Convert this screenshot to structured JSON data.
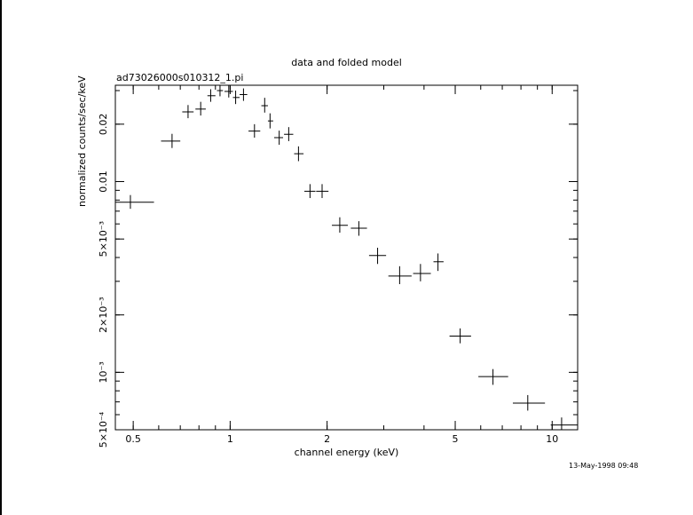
{
  "chart_data": {
    "type": "scatter",
    "title": "data and folded model",
    "subtitle": "ad73026000s010312_1.pi",
    "xlabel": "channel energy (keV)",
    "ylabel": "normalized counts/sec/keV",
    "x_scale": "log",
    "y_scale": "log",
    "xlim": [
      0.44,
      12.0
    ],
    "ylim": [
      0.0005,
      0.032
    ],
    "grid": false,
    "legend": "none",
    "x_ticks": [
      {
        "value": 0.5,
        "label": "0.5"
      },
      {
        "value": 1,
        "label": "1"
      },
      {
        "value": 2,
        "label": "2"
      },
      {
        "value": 5,
        "label": "5"
      },
      {
        "value": 10,
        "label": "10"
      }
    ],
    "y_ticks": [
      {
        "value": 0.0005,
        "label": "5×10⁻⁴"
      },
      {
        "value": 0.001,
        "label": "10⁻³"
      },
      {
        "value": 0.002,
        "label": "2×10⁻³"
      },
      {
        "value": 0.005,
        "label": "5×10⁻³"
      },
      {
        "value": 0.01,
        "label": "0.01"
      },
      {
        "value": 0.02,
        "label": "0.02"
      }
    ],
    "points": [
      {
        "x": 0.49,
        "xlo": 0.44,
        "xhi": 0.58,
        "y": 0.0078,
        "ylo": 0.0072,
        "yhi": 0.0085
      },
      {
        "x": 0.66,
        "xlo": 0.61,
        "xhi": 0.7,
        "y": 0.0163,
        "ylo": 0.015,
        "yhi": 0.0178
      },
      {
        "x": 0.74,
        "xlo": 0.71,
        "xhi": 0.77,
        "y": 0.0232,
        "ylo": 0.0215,
        "yhi": 0.0252
      },
      {
        "x": 0.81,
        "xlo": 0.78,
        "xhi": 0.84,
        "y": 0.024,
        "ylo": 0.0222,
        "yhi": 0.0262
      },
      {
        "x": 0.87,
        "xlo": 0.85,
        "xhi": 0.9,
        "y": 0.0282,
        "ylo": 0.0262,
        "yhi": 0.0305
      },
      {
        "x": 0.93,
        "xlo": 0.91,
        "xhi": 0.95,
        "y": 0.03,
        "ylo": 0.028,
        "yhi": 0.032
      },
      {
        "x": 0.99,
        "xlo": 0.96,
        "xhi": 1.02,
        "y": 0.0297,
        "ylo": 0.0276,
        "yhi": 0.032
      },
      {
        "x": 1.04,
        "xlo": 1.02,
        "xhi": 1.07,
        "y": 0.0276,
        "ylo": 0.0255,
        "yhi": 0.03
      },
      {
        "x": 1.1,
        "xlo": 1.07,
        "xhi": 1.13,
        "y": 0.0286,
        "ylo": 0.0265,
        "yhi": 0.0308
      },
      {
        "x": 1.19,
        "xlo": 1.14,
        "xhi": 1.24,
        "y": 0.0184,
        "ylo": 0.017,
        "yhi": 0.02
      },
      {
        "x": 1.28,
        "xlo": 1.25,
        "xhi": 1.31,
        "y": 0.025,
        "ylo": 0.023,
        "yhi": 0.0275
      },
      {
        "x": 1.33,
        "xlo": 1.31,
        "xhi": 1.36,
        "y": 0.0208,
        "ylo": 0.019,
        "yhi": 0.0228
      },
      {
        "x": 1.42,
        "xlo": 1.37,
        "xhi": 1.46,
        "y": 0.017,
        "ylo": 0.0156,
        "yhi": 0.0185
      },
      {
        "x": 1.52,
        "xlo": 1.47,
        "xhi": 1.57,
        "y": 0.0177,
        "ylo": 0.0163,
        "yhi": 0.0193
      },
      {
        "x": 1.63,
        "xlo": 1.58,
        "xhi": 1.69,
        "y": 0.014,
        "ylo": 0.0128,
        "yhi": 0.0153
      },
      {
        "x": 1.77,
        "xlo": 1.7,
        "xhi": 1.84,
        "y": 0.0089,
        "ylo": 0.0082,
        "yhi": 0.0097
      },
      {
        "x": 1.93,
        "xlo": 1.85,
        "xhi": 2.02,
        "y": 0.0089,
        "ylo": 0.0082,
        "yhi": 0.0097
      },
      {
        "x": 2.19,
        "xlo": 2.07,
        "xhi": 2.32,
        "y": 0.0059,
        "ylo": 0.0054,
        "yhi": 0.0065
      },
      {
        "x": 2.51,
        "xlo": 2.37,
        "xhi": 2.66,
        "y": 0.0057,
        "ylo": 0.0052,
        "yhi": 0.0062
      },
      {
        "x": 2.87,
        "xlo": 2.7,
        "xhi": 3.05,
        "y": 0.0041,
        "ylo": 0.0037,
        "yhi": 0.0045
      },
      {
        "x": 3.36,
        "xlo": 3.1,
        "xhi": 3.66,
        "y": 0.0032,
        "ylo": 0.0029,
        "yhi": 0.0036
      },
      {
        "x": 3.9,
        "xlo": 3.7,
        "xhi": 4.2,
        "y": 0.0033,
        "ylo": 0.003,
        "yhi": 0.0037
      },
      {
        "x": 4.42,
        "xlo": 4.28,
        "xhi": 4.6,
        "y": 0.0038,
        "ylo": 0.0034,
        "yhi": 0.0042
      },
      {
        "x": 5.18,
        "xlo": 4.8,
        "xhi": 5.6,
        "y": 0.00155,
        "ylo": 0.00142,
        "yhi": 0.0017
      },
      {
        "x": 6.55,
        "xlo": 5.9,
        "xhi": 7.3,
        "y": 0.00095,
        "ylo": 0.00086,
        "yhi": 0.00104
      },
      {
        "x": 8.4,
        "xlo": 7.55,
        "xhi": 9.5,
        "y": 0.00069,
        "ylo": 0.00063,
        "yhi": 0.00076
      },
      {
        "x": 10.7,
        "xlo": 9.9,
        "xhi": 12.0,
        "y": 0.00053,
        "ylo": 0.00048,
        "yhi": 0.00058
      }
    ]
  },
  "footer": {
    "timestamp": "13-May-1998 09:48"
  }
}
